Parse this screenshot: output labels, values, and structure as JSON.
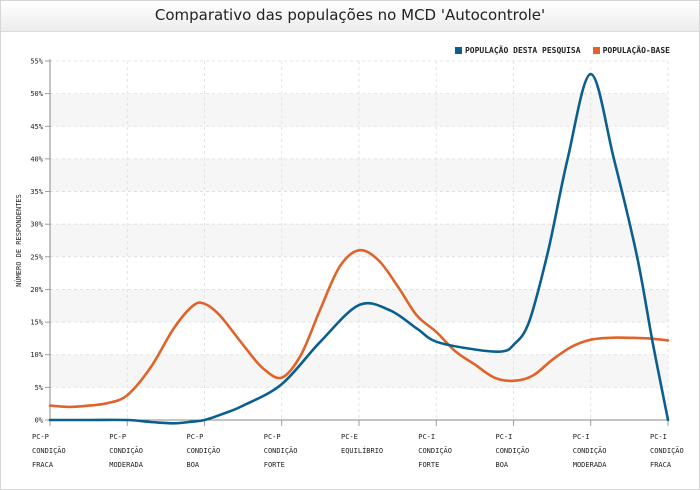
{
  "chart_data": {
    "type": "line",
    "title": "Comparativo das populações no MCD 'Autocontrole'",
    "ylabel": "NÚMERO DE RESPONDENTES",
    "xlabel": "",
    "ylim": [
      0,
      55
    ],
    "ytick_step": 5,
    "ytick_suffix": "%",
    "grid": true,
    "legend_position": "top-right",
    "categories": [
      [
        "PC-P",
        "CONDIÇÃO",
        "FRACA"
      ],
      [
        "PC-P",
        "CONDIÇÃO",
        "MODERADA"
      ],
      [
        "PC-P",
        "CONDIÇÃO",
        "BOA"
      ],
      [
        "PC-P",
        "CONDIÇÃO",
        "FORTE"
      ],
      [
        "PC-E",
        "EQUILÍBRIO"
      ],
      [
        "PC-I",
        "CONDIÇÃO",
        "FORTE"
      ],
      [
        "PC-I",
        "CONDIÇÃO",
        "BOA"
      ],
      [
        "PC-I",
        "CONDIÇÃO",
        "MODERADA"
      ],
      [
        "PC-I",
        "CONDIÇÃO",
        "FRACA"
      ]
    ],
    "series": [
      {
        "name": "POPULAÇÃO DESTA PESQUISA",
        "color": "#0b5f8e",
        "x": [
          0,
          0.5,
          1,
          1.3,
          1.6,
          1.8,
          2,
          2.25,
          2.5,
          3,
          3.5,
          4,
          4.4,
          4.75,
          5,
          5.5,
          5.85,
          6,
          6.2,
          6.45,
          6.7,
          7,
          7.3,
          7.6,
          7.8,
          8
        ],
        "y": [
          0,
          0,
          0,
          -0.3,
          -0.5,
          -0.3,
          0,
          1,
          2.2,
          5.5,
          12,
          17.6,
          16.8,
          14,
          12,
          10.8,
          10.5,
          11.5,
          15,
          26,
          40,
          53,
          40,
          25,
          12,
          0
        ]
      },
      {
        "name": "POPULAÇÃO-BASE",
        "color": "#e0632a",
        "x": [
          0,
          0.25,
          0.5,
          0.75,
          1,
          1.3,
          1.6,
          1.85,
          2,
          2.2,
          2.5,
          2.75,
          3,
          3.25,
          3.5,
          3.75,
          4,
          4.25,
          4.5,
          4.75,
          5,
          5.25,
          5.5,
          5.75,
          6,
          6.25,
          6.5,
          6.75,
          7,
          7.25,
          7.5,
          7.75,
          8
        ],
        "y": [
          2.2,
          2.0,
          2.2,
          2.6,
          3.8,
          8,
          14,
          17.5,
          17.8,
          16,
          11.5,
          8,
          6.5,
          10,
          17,
          23.5,
          26,
          24.5,
          20.5,
          16,
          13.5,
          10.5,
          8.5,
          6.5,
          6,
          6.8,
          9.2,
          11.2,
          12.3,
          12.6,
          12.6,
          12.5,
          12.2
        ]
      }
    ]
  }
}
